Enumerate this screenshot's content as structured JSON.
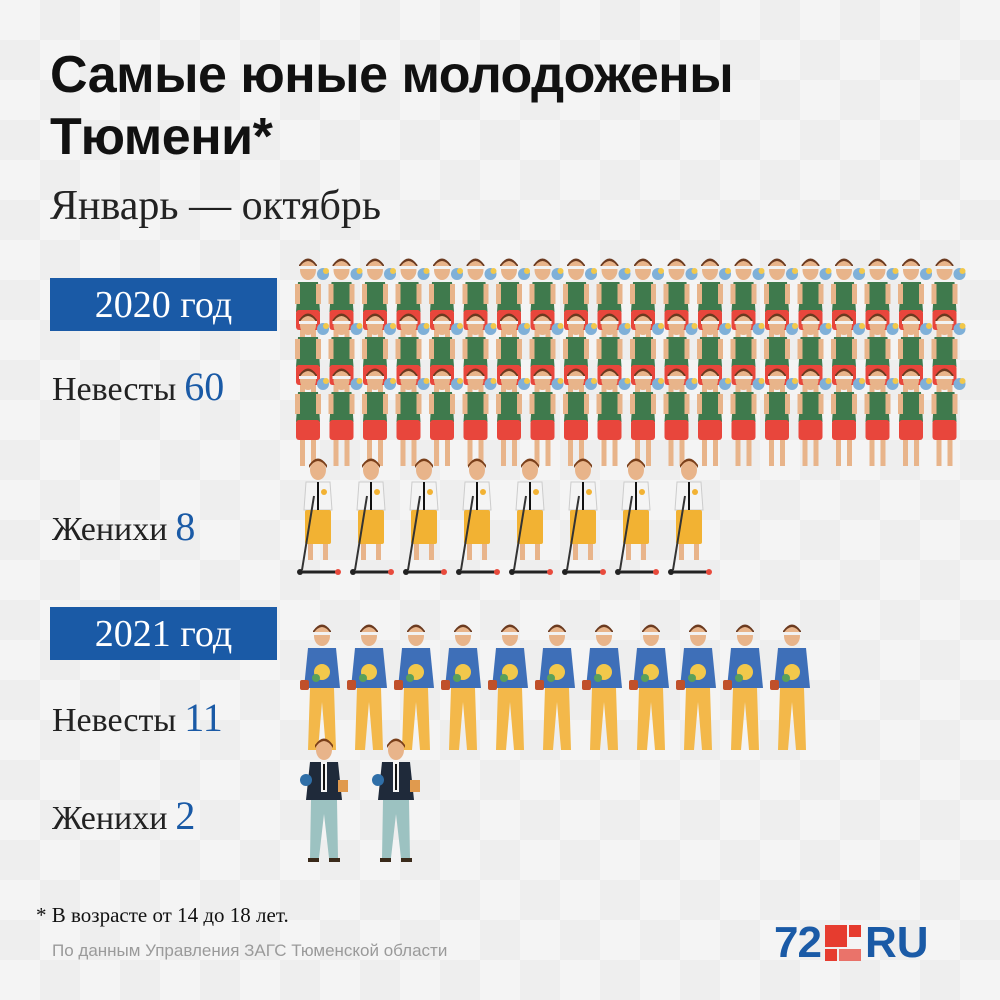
{
  "title": "Самые юные молодожены Тюмени*",
  "subtitle": "Январь — октябрь",
  "footnote": "* В возрасте от 14 до 18 лет.",
  "source": "По данным Управления ЗАГС Тюменской области",
  "logo": {
    "number": "72",
    "suffix": "RU"
  },
  "colors": {
    "accent": "#1a5aa6",
    "logo_red": "#e63c2f",
    "bride2020_shorts": "#e8463c",
    "bride2020_top": "#3f7a4d",
    "groom2020_shorts": "#f2b233",
    "bride2021_jacket": "#3e6fb8",
    "bride2021_pants": "#f3b84a",
    "groom2021_jacket": "#1f2a3a",
    "groom2021_pants": "#9cc2c1"
  },
  "chart_data": {
    "type": "pictogram",
    "groups": [
      {
        "year_label": "2020 год",
        "rows": [
          {
            "label": "Невесты",
            "value": 60,
            "icon": "bride-2020-icon"
          },
          {
            "label": "Женихи",
            "value": 8,
            "icon": "groom-2020-icon"
          }
        ]
      },
      {
        "year_label": "2021 год",
        "rows": [
          {
            "label": "Невесты",
            "value": 11,
            "icon": "bride-2021-icon"
          },
          {
            "label": "Женихи",
            "value": 2,
            "icon": "groom-2021-icon"
          }
        ]
      }
    ]
  }
}
